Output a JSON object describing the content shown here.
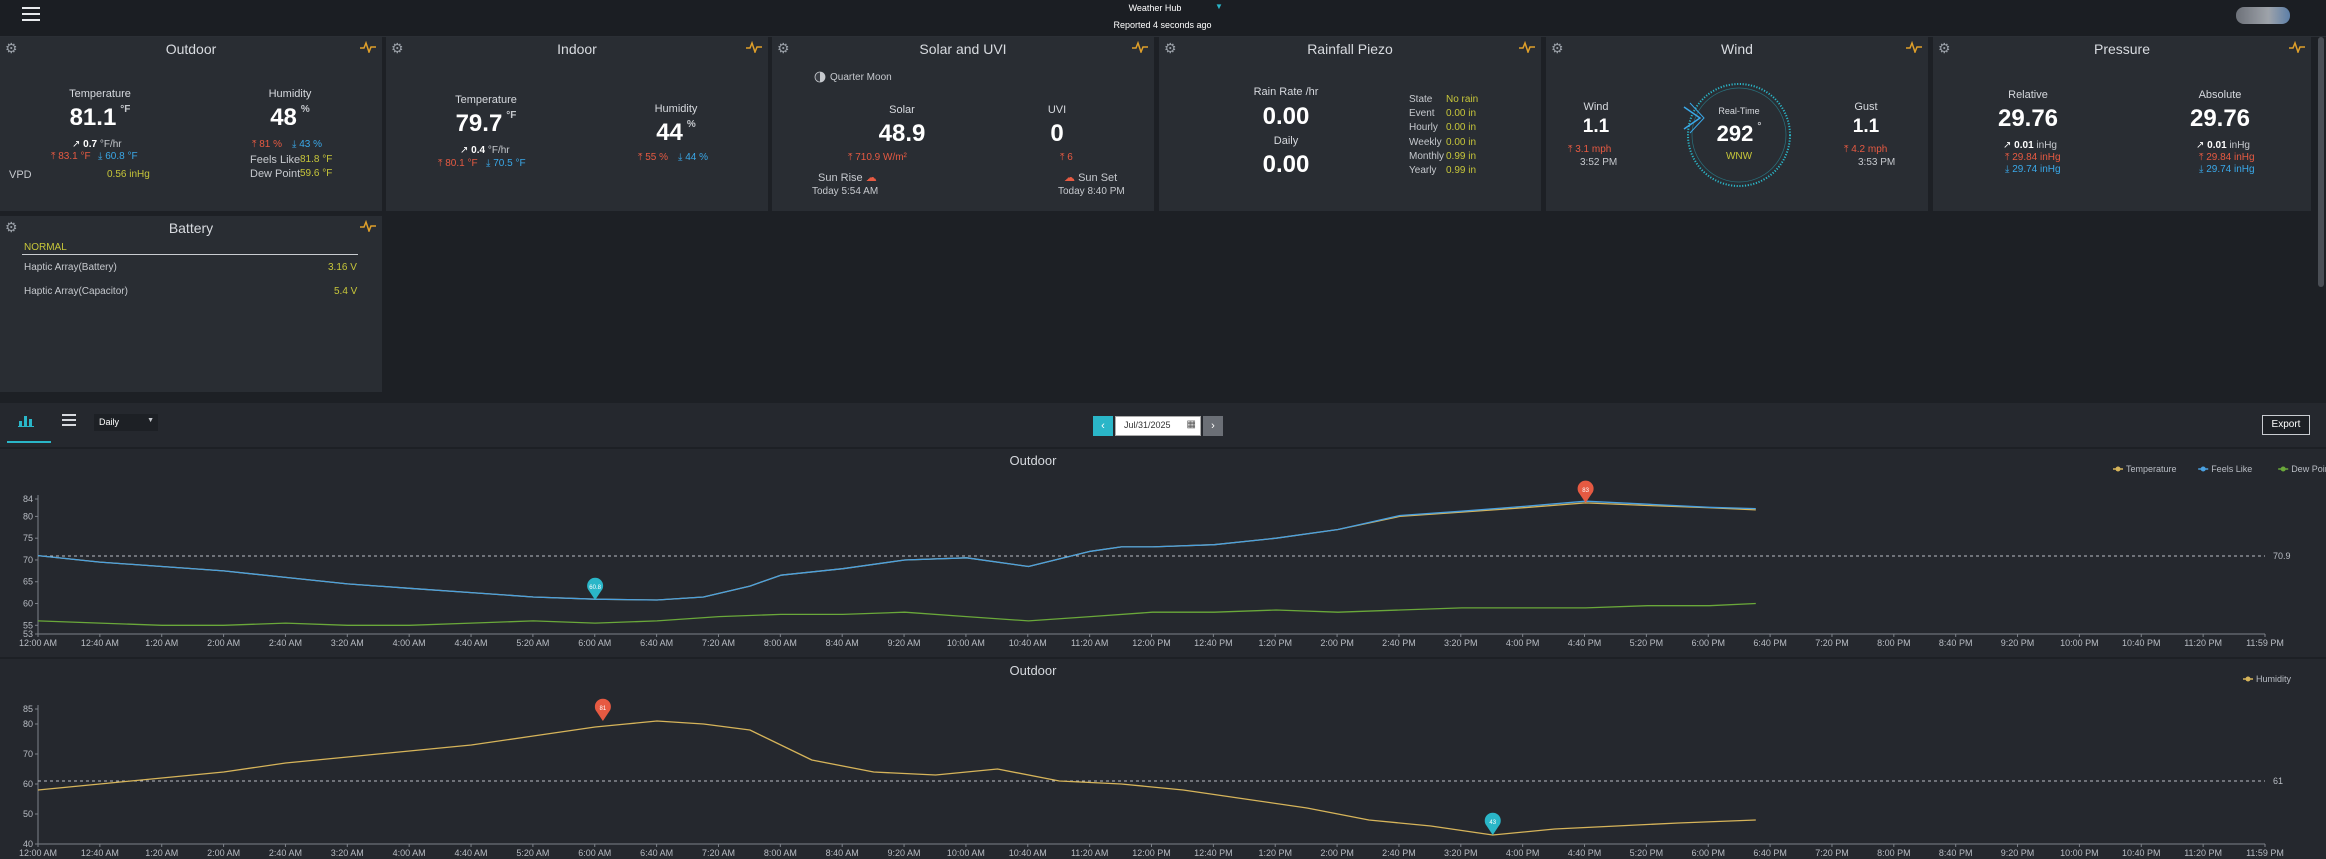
{
  "header": {
    "title": "Weather Hub",
    "status": "Reported 4 seconds ago",
    "menu_icon": "hamburger-icon",
    "avatar_icon": "avatar-icon"
  },
  "colors": {
    "bg": "#1d2025",
    "card": "#292d33",
    "red": "#e65a42",
    "blue": "#3aa8e8",
    "yellow": "#c7c63a",
    "temp_line": "#d6b45a",
    "dew_line": "#6aa83a",
    "teal": "#2ab6c8"
  },
  "outdoor": {
    "title": "Outdoor",
    "temp_label": "Temperature",
    "temp_value": "81.1",
    "temp_unit": "°F",
    "temp_rate": "0.7",
    "temp_rate_unit": "°F/hr",
    "temp_high": "83.1 °F",
    "temp_low": "60.8 °F",
    "vpd_label": "VPD",
    "vpd_value": "0.56 inHg",
    "hum_label": "Humidity",
    "hum_value": "48",
    "hum_unit": "%",
    "hum_high": "81 %",
    "hum_low": "43 %",
    "feels_label": "Feels Like",
    "feels_value": "81.8 °F",
    "dew_label": "Dew Point",
    "dew_value": "59.6 °F"
  },
  "indoor": {
    "title": "Indoor",
    "temp_label": "Temperature",
    "temp_value": "79.7",
    "temp_unit": "°F",
    "temp_rate": "0.4",
    "temp_rate_unit": "°F/hr",
    "temp_high": "80.1 °F",
    "temp_low": "70.5 °F",
    "hum_label": "Humidity",
    "hum_value": "44",
    "hum_unit": "%",
    "hum_high": "55 %",
    "hum_low": "44 %"
  },
  "solar": {
    "title": "Solar and UVI",
    "moon": "Quarter Moon",
    "solar_label": "Solar",
    "solar_value": "48.9",
    "solar_high": "710.9 W/m²",
    "uvi_label": "UVI",
    "uvi_value": "0",
    "uvi_high": "6",
    "sunrise_label": "Sun Rise",
    "sunrise_value": "Today 5:54 AM",
    "sunset_label": "Sun Set",
    "sunset_value": "Today 8:40 PM"
  },
  "rain": {
    "title": "Rainfall Piezo",
    "rate_label": "Rain Rate /hr",
    "rate_value": "0.00",
    "daily_label": "Daily",
    "daily_value": "0.00",
    "rows": [
      {
        "label": "State",
        "value": "No rain"
      },
      {
        "label": "Event",
        "value": "0.00 in"
      },
      {
        "label": "Hourly",
        "value": "0.00 in"
      },
      {
        "label": "Weekly",
        "value": "0.00 in"
      },
      {
        "label": "Monthly",
        "value": "0.99 in"
      },
      {
        "label": "Yearly",
        "value": "0.99 in"
      }
    ]
  },
  "wind": {
    "title": "Wind",
    "wind_label": "Wind",
    "wind_value": "1.1",
    "wind_high": "3.1 mph",
    "wind_time": "3:52 PM",
    "realtime_label": "Real-Time",
    "direction_value": "292",
    "direction_unit": "°",
    "direction_name": "WNW",
    "gust_label": "Gust",
    "gust_value": "1.1",
    "gust_high": "4.2 mph",
    "gust_time": "3:53 PM"
  },
  "pressure": {
    "title": "Pressure",
    "rel_label": "Relative",
    "rel_value": "29.76",
    "rel_rate": "0.01",
    "rel_rate_unit": "inHg",
    "rel_high": "29.84 inHg",
    "rel_low": "29.74 inHg",
    "abs_label": "Absolute",
    "abs_value": "29.76",
    "abs_rate": "0.01",
    "abs_rate_unit": "inHg",
    "abs_high": "29.84 inHg",
    "abs_low": "29.74 inHg"
  },
  "battery": {
    "title": "Battery",
    "status": "NORMAL",
    "rows": [
      {
        "label": "Haptic Array(Battery)",
        "value": "3.16 V"
      },
      {
        "label": "Haptic Array(Capacitor)",
        "value": "5.4 V"
      }
    ]
  },
  "toolbar": {
    "chart_icon": "bar-chart-icon",
    "list_icon": "list-icon",
    "period": "Daily",
    "date": "Jul/31/2025",
    "export": "Export"
  },
  "chart_data": [
    {
      "type": "line",
      "title": "Outdoor",
      "legend": [
        "Temperature",
        "Feels Like",
        "Dew Point"
      ],
      "legend_position": "top-right",
      "yticks": [
        53,
        55,
        60,
        65,
        70,
        75,
        80,
        84
      ],
      "ylim": [
        53,
        84
      ],
      "xlim": [
        0,
        1439
      ],
      "xticks": [
        "12:00 AM",
        "12:40 AM",
        "1:20 AM",
        "2:00 AM",
        "2:40 AM",
        "3:20 AM",
        "4:00 AM",
        "4:40 AM",
        "5:20 AM",
        "6:00 AM",
        "6:40 AM",
        "7:20 AM",
        "8:00 AM",
        "8:40 AM",
        "9:20 AM",
        "10:00 AM",
        "10:40 AM",
        "11:20 AM",
        "12:00 PM",
        "12:40 PM",
        "1:20 PM",
        "2:00 PM",
        "2:40 PM",
        "3:20 PM",
        "4:00 PM",
        "4:40 PM",
        "5:20 PM",
        "6:00 PM",
        "6:40 PM",
        "7:20 PM",
        "8:00 PM",
        "8:40 PM",
        "9:20 PM",
        "10:00 PM",
        "10:40 PM",
        "11:20 PM",
        "11:59 PM"
      ],
      "avg_line": {
        "value": 70.9,
        "label": "70.9"
      },
      "markers": [
        {
          "label": "83",
          "x": 1000,
          "y": 83.1,
          "kind": "max"
        },
        {
          "label": "60.8",
          "x": 360,
          "y": 60.8,
          "kind": "min"
        }
      ],
      "series": [
        {
          "name": "Temperature",
          "x": [
            0,
            40,
            80,
            120,
            160,
            200,
            240,
            280,
            320,
            360,
            400,
            430,
            460,
            480,
            520,
            560,
            600,
            640,
            680,
            700,
            720,
            760,
            800,
            840,
            880,
            920,
            960,
            1000,
            1040,
            1080,
            1110
          ],
          "y": [
            71,
            69.5,
            68.5,
            67.5,
            66,
            64.5,
            63.5,
            62.5,
            61.5,
            61,
            60.8,
            61.5,
            64,
            66.5,
            68,
            70,
            70.5,
            68.5,
            72,
            73,
            73,
            73.5,
            75,
            77,
            80,
            81,
            82,
            83.1,
            82.5,
            82,
            81.5
          ]
        },
        {
          "name": "Feels Like",
          "x": [
            0,
            40,
            80,
            120,
            160,
            200,
            240,
            280,
            320,
            360,
            400,
            430,
            460,
            480,
            520,
            560,
            600,
            640,
            680,
            700,
            720,
            760,
            800,
            840,
            880,
            920,
            960,
            1000,
            1040,
            1080,
            1110
          ],
          "y": [
            71,
            69.5,
            68.5,
            67.5,
            66,
            64.5,
            63.5,
            62.5,
            61.5,
            61,
            60.8,
            61.5,
            64,
            66.5,
            68,
            70,
            70.5,
            68.5,
            72,
            73,
            73,
            73.5,
            75,
            77,
            80.2,
            81.2,
            82.3,
            83.5,
            82.8,
            82.1,
            81.8
          ]
        },
        {
          "name": "Dew Point",
          "x": [
            0,
            40,
            80,
            120,
            160,
            200,
            240,
            280,
            320,
            360,
            400,
            440,
            480,
            520,
            560,
            600,
            640,
            680,
            720,
            760,
            800,
            840,
            880,
            920,
            960,
            1000,
            1040,
            1080,
            1110
          ],
          "y": [
            56,
            55.5,
            55,
            55,
            55.5,
            55,
            55,
            55.5,
            56,
            55.5,
            56,
            57,
            57.5,
            57.5,
            58,
            57,
            56,
            57,
            58,
            58,
            58.5,
            58,
            58.5,
            59,
            59,
            59,
            59.5,
            59.5,
            60
          ]
        }
      ]
    },
    {
      "type": "line",
      "title": "Outdoor",
      "legend": [
        "Humidity"
      ],
      "legend_position": "top-right",
      "yticks": [
        40,
        50,
        60,
        70,
        80,
        85
      ],
      "ylim": [
        40,
        85
      ],
      "xlim": [
        0,
        1439
      ],
      "xticks": [
        "12:00 AM",
        "12:40 AM",
        "1:20 AM",
        "2:00 AM",
        "2:40 AM",
        "3:20 AM",
        "4:00 AM",
        "4:40 AM",
        "5:20 AM",
        "6:00 AM",
        "6:40 AM",
        "7:20 AM",
        "8:00 AM",
        "8:40 AM",
        "9:20 AM",
        "10:00 AM",
        "10:40 AM",
        "11:20 AM",
        "12:00 PM",
        "12:40 PM",
        "1:20 PM",
        "2:00 PM",
        "2:40 PM",
        "3:20 PM",
        "4:00 PM",
        "4:40 PM",
        "5:20 PM",
        "6:00 PM",
        "6:40 PM",
        "7:20 PM",
        "8:00 PM",
        "8:40 PM",
        "9:20 PM",
        "10:00 PM",
        "10:40 PM",
        "11:20 PM",
        "11:59 PM"
      ],
      "avg_line": {
        "value": 61,
        "label": "61"
      },
      "markers": [
        {
          "label": "81",
          "x": 365,
          "y": 81,
          "kind": "max"
        },
        {
          "label": "43",
          "x": 940,
          "y": 43,
          "kind": "min"
        }
      ],
      "series": [
        {
          "name": "Humidity",
          "x": [
            0,
            40,
            80,
            120,
            160,
            200,
            240,
            280,
            320,
            360,
            380,
            400,
            430,
            460,
            500,
            540,
            580,
            620,
            660,
            700,
            740,
            780,
            820,
            860,
            900,
            940,
            980,
            1020,
            1060,
            1110
          ],
          "y": [
            58,
            60,
            62,
            64,
            67,
            69,
            71,
            73,
            76,
            79,
            80,
            81,
            80,
            78,
            68,
            64,
            63,
            65,
            61,
            60,
            58,
            55,
            52,
            48,
            46,
            43,
            45,
            46,
            47,
            48
          ]
        }
      ]
    }
  ]
}
